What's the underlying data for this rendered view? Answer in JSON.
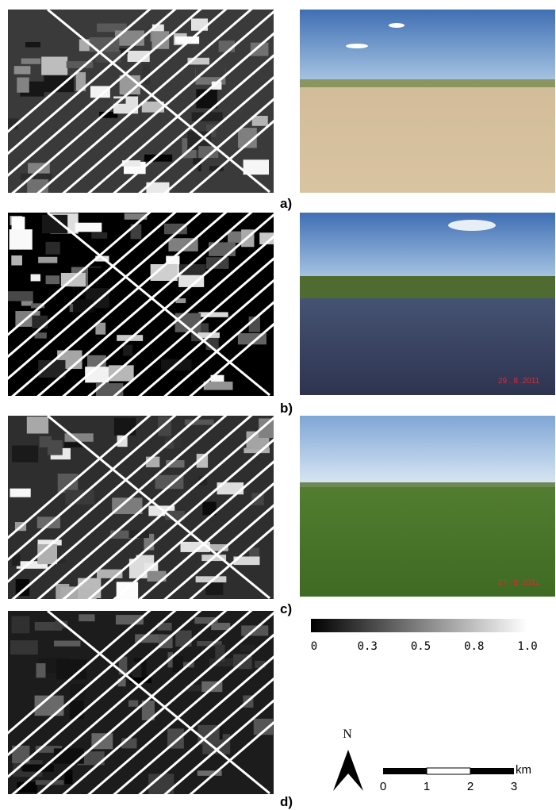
{
  "panels": [
    {
      "label": "a)"
    },
    {
      "label": "b)",
      "photo_stamp": "29 . 8 .2011"
    },
    {
      "label": "c)",
      "photo_stamp": "27 . 8 .2011"
    },
    {
      "label": "d)"
    }
  ],
  "colorbar": {
    "ticks": [
      "0",
      "0.3",
      "0.5",
      "0.8",
      "1.0"
    ]
  },
  "north_arrow": {
    "label": "N"
  },
  "scale_bar": {
    "unit": "km",
    "ticks": [
      "0",
      "1",
      "2",
      "3"
    ]
  }
}
